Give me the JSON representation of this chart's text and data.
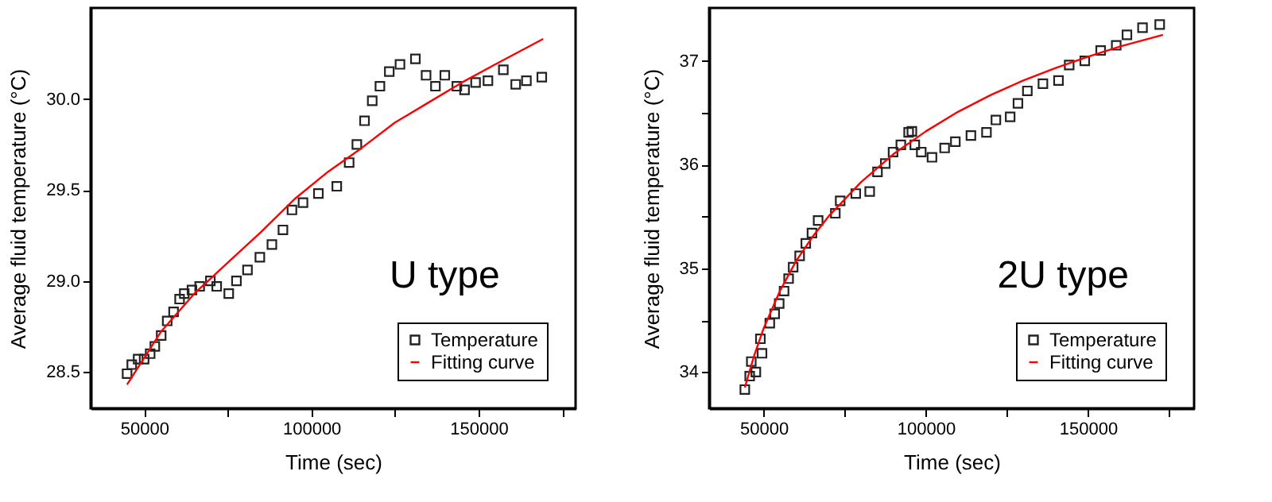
{
  "chart_data": [
    {
      "type": "scatter",
      "xlabel": "Time (sec)",
      "ylabel": "Average fluid temperature (°C)",
      "annotations": [
        "U type"
      ],
      "legend": "bottom right",
      "grid": false,
      "xlim": [
        34000,
        179000
      ],
      "xticks": [
        50000,
        {
          "value": 75000,
          "label": null
        },
        100000,
        {
          "value": 125000,
          "label": null
        },
        150000,
        {
          "value": 175000,
          "label": null
        }
      ],
      "ylim": [
        28.3,
        30.5
      ],
      "yticks": [
        {
          "value": 28.5,
          "label": "28.5"
        },
        {
          "value": 29,
          "label": "29.0"
        },
        {
          "value": 29.5,
          "label": "29.5"
        },
        {
          "value": 30,
          "label": "30.0"
        }
      ],
      "series": [
        {
          "name": "Temperature",
          "marker": "square",
          "color": "#222222",
          "x": [
            44900,
            46300,
            48200,
            50000,
            51800,
            53200,
            55100,
            56900,
            58800,
            60600,
            62000,
            64300,
            66600,
            69800,
            71700,
            75300,
            77600,
            80900,
            84600,
            88200,
            91500,
            94200,
            97500,
            102100,
            107600,
            111300,
            113600,
            115900,
            118200,
            120500,
            123300,
            126500,
            131100,
            134300,
            137100,
            139900,
            143500,
            145800,
            149100,
            152800,
            157400,
            161100,
            164300,
            168900
          ],
          "values": [
            28.49,
            28.54,
            28.57,
            28.57,
            28.6,
            28.64,
            28.7,
            28.78,
            28.83,
            28.9,
            28.93,
            28.95,
            28.97,
            29.0,
            28.97,
            28.93,
            29.0,
            29.06,
            29.13,
            29.2,
            29.28,
            29.39,
            29.43,
            29.48,
            29.52,
            29.65,
            29.75,
            29.88,
            29.99,
            30.07,
            30.15,
            30.19,
            30.22,
            30.13,
            30.07,
            30.13,
            30.07,
            30.05,
            30.09,
            30.1,
            30.16,
            30.08,
            30.1,
            30.12
          ]
        },
        {
          "name": "Fitting curve",
          "type": "line",
          "color": "#ff0000",
          "x": [
            44900,
            55000,
            65000,
            75000,
            85000,
            95000,
            105000,
            115000,
            125000,
            135000,
            145000,
            155000,
            169300
          ],
          "values": [
            28.43,
            28.72,
            28.93,
            29.1,
            29.27,
            29.45,
            29.6,
            29.73,
            29.87,
            29.98,
            30.09,
            30.19,
            30.33
          ]
        }
      ]
    },
    {
      "type": "scatter",
      "xlabel": "Time (sec)",
      "ylabel": "Average fluid temperature (°C)",
      "annotations": [
        "2U type"
      ],
      "legend": "bottom right",
      "grid": false,
      "xlim": [
        33200,
        182700
      ],
      "xticks": [
        50000,
        {
          "value": 75000,
          "label": null
        },
        100000,
        {
          "value": 125000,
          "label": null
        },
        150000,
        {
          "value": 175000,
          "label": null
        }
      ],
      "ylim": [
        33.65,
        37.51
      ],
      "yticks": [
        34,
        {
          "value": 34.5,
          "label": null
        },
        35,
        {
          "value": 35.5,
          "label": null
        },
        36,
        {
          "value": 36.5,
          "label": null
        },
        37
      ],
      "series": [
        {
          "name": "Temperature",
          "marker": "square",
          "color": "#222222",
          "x": [
            44200,
            45700,
            46200,
            47600,
            49000,
            49500,
            51900,
            53400,
            54800,
            56300,
            57700,
            59100,
            61100,
            63000,
            64900,
            66800,
            72100,
            73600,
            78400,
            82700,
            85100,
            87500,
            89900,
            92300,
            94700,
            95700,
            96600,
            98600,
            101900,
            105800,
            109100,
            113900,
            118700,
            121600,
            126000,
            128400,
            131300,
            136100,
            140900,
            144200,
            149000,
            153900,
            158700,
            162000,
            166800,
            172100
          ],
          "values": [
            33.83,
            33.96,
            34.1,
            34.0,
            34.32,
            34.18,
            34.47,
            34.56,
            34.66,
            34.78,
            34.9,
            35.01,
            35.12,
            35.24,
            35.34,
            35.46,
            35.53,
            35.65,
            35.72,
            35.74,
            35.93,
            36.01,
            36.12,
            36.19,
            36.31,
            36.32,
            36.19,
            36.12,
            36.07,
            36.16,
            36.22,
            36.28,
            36.31,
            36.43,
            36.46,
            36.59,
            36.71,
            36.78,
            36.81,
            36.96,
            37.0,
            37.1,
            37.15,
            37.25,
            37.32,
            37.35
          ]
        },
        {
          "name": "Fitting curve",
          "type": "line",
          "color": "#ff0000",
          "x": [
            44200,
            47000,
            50000,
            55000,
            60000,
            65000,
            70000,
            80000,
            90000,
            100000,
            110000,
            120000,
            130000,
            140000,
            150000,
            160000,
            173100
          ],
          "values": [
            33.85,
            34.15,
            34.42,
            34.78,
            35.07,
            35.3,
            35.5,
            35.83,
            36.1,
            36.32,
            36.51,
            36.67,
            36.81,
            36.93,
            37.04,
            37.14,
            37.25
          ]
        }
      ]
    }
  ]
}
